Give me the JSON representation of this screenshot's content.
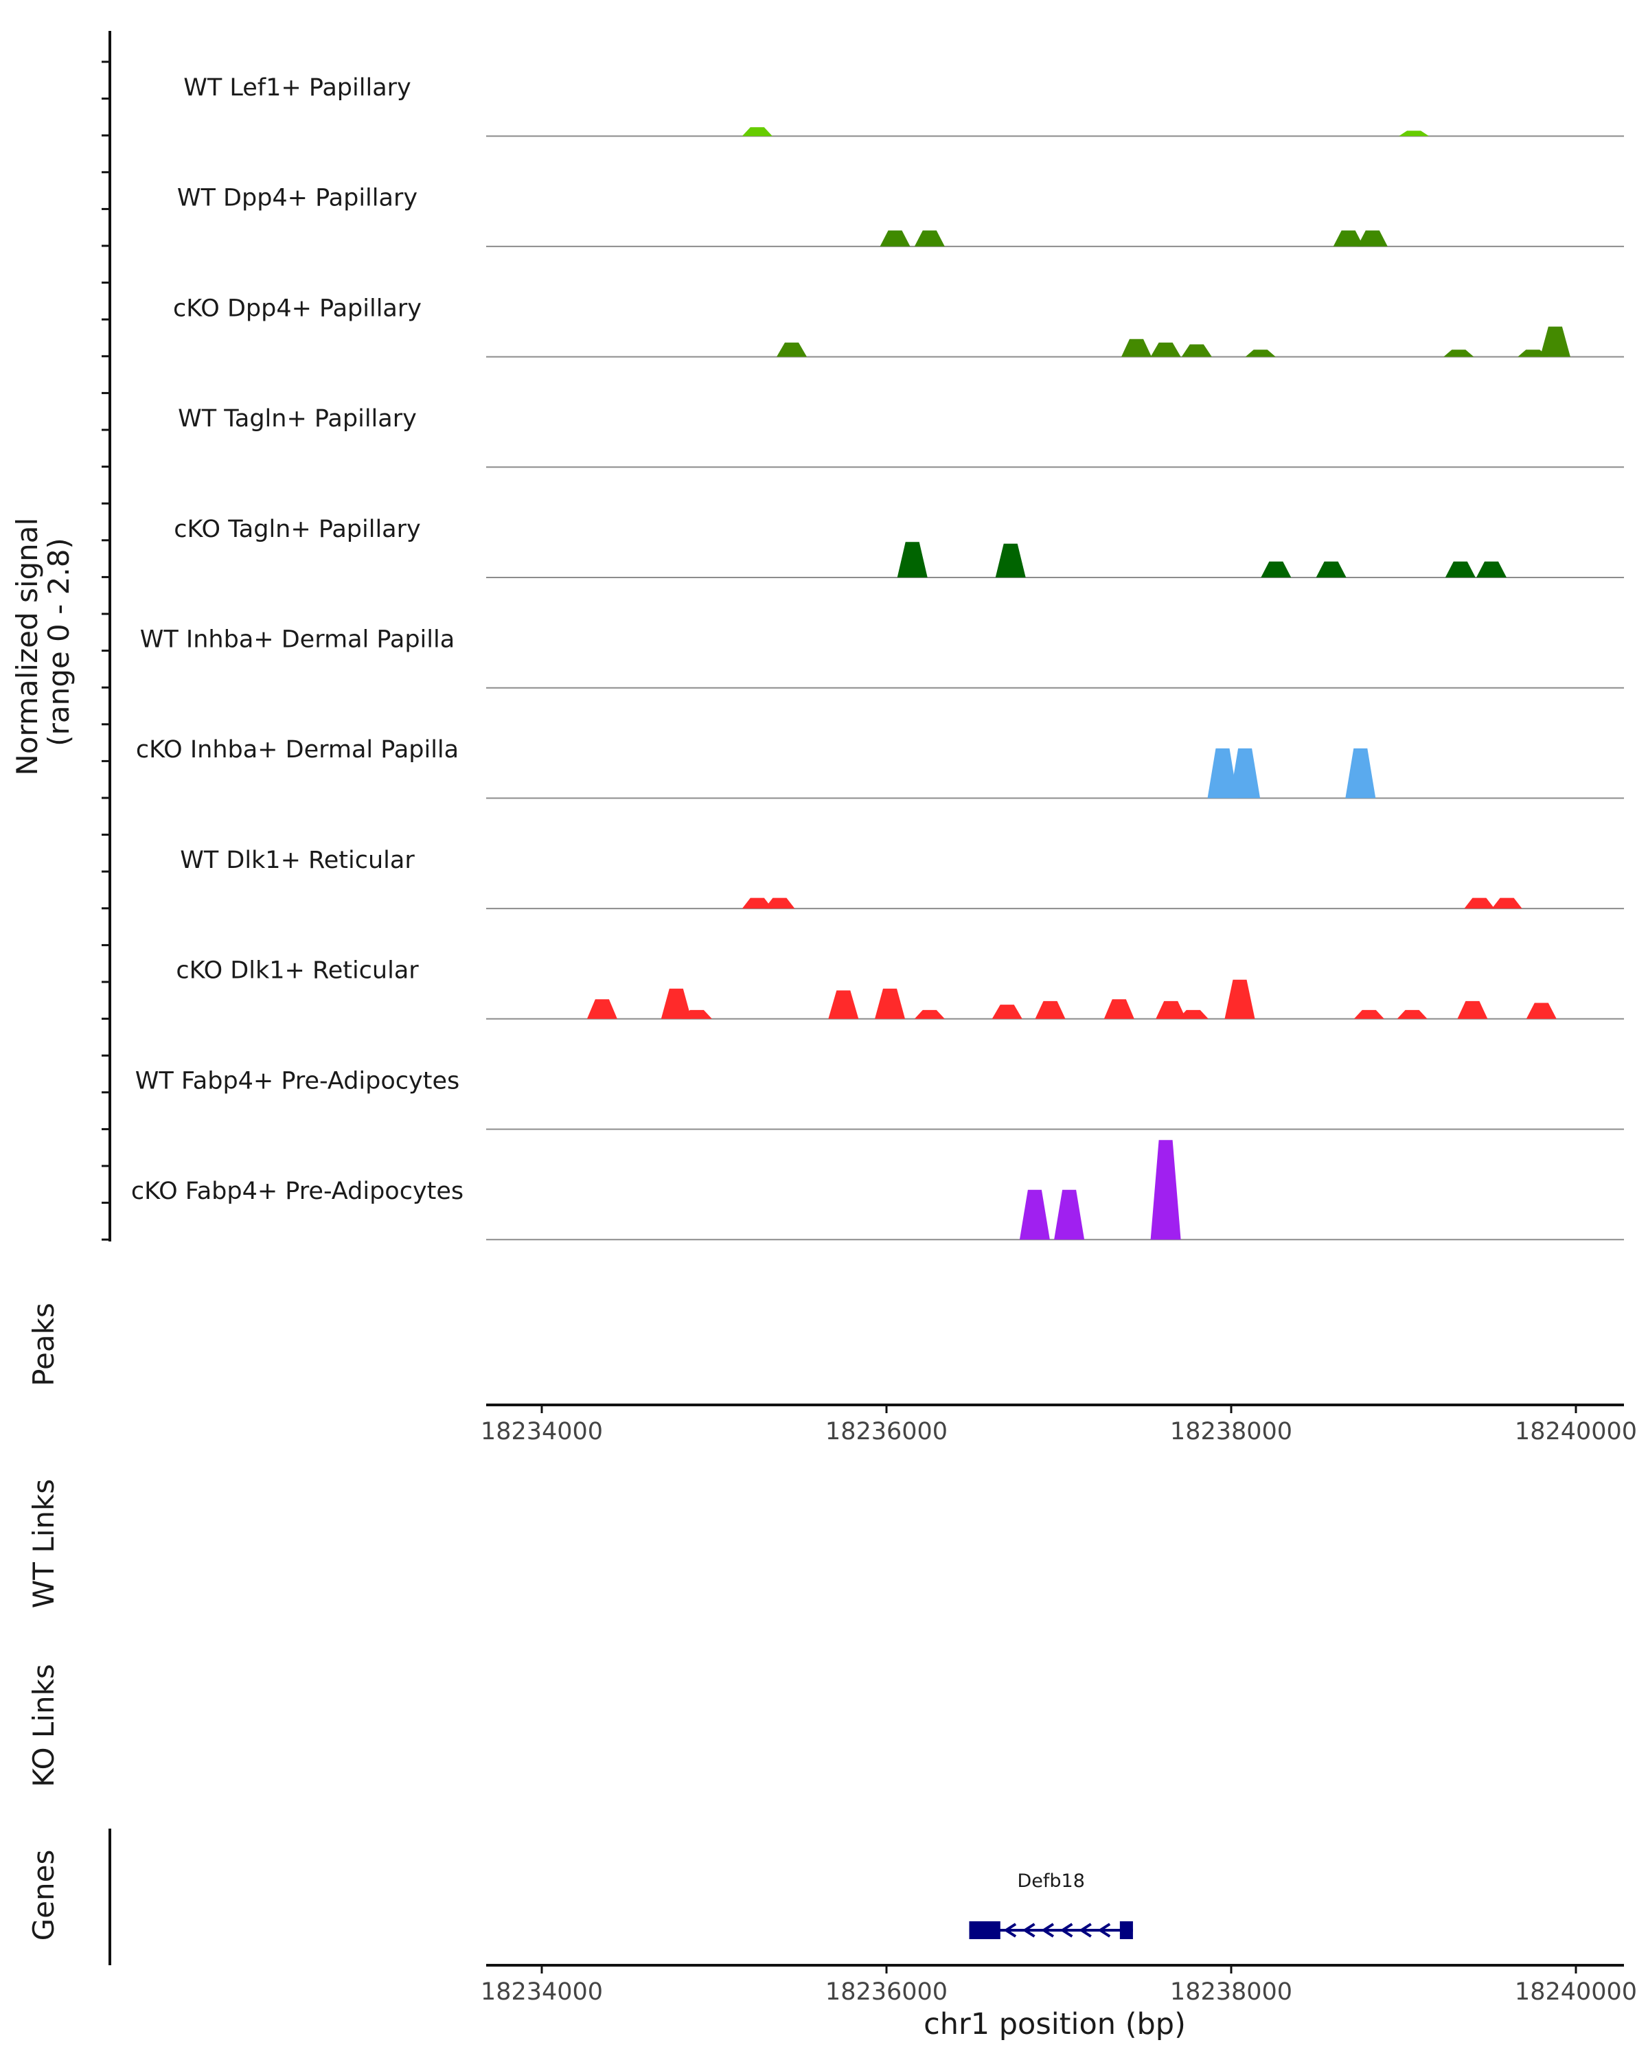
{
  "chart_data": {
    "type": "area",
    "title": "",
    "ylabel": "Normalized signal\n(range 0 - 2.8)",
    "ylim": [
      0,
      2.8
    ],
    "xlabel": "chr1 position (bp)",
    "xlim": [
      18233800,
      18240200
    ],
    "xticks": [
      18234000,
      18236000,
      18238000,
      18240000
    ],
    "xtick_labels": [
      "18234000",
      "18236000",
      "18238000",
      "18240000"
    ],
    "tracks": [
      {
        "name": "WT Lef1+ Papillary",
        "color": "#66CC00",
        "peaks": [
          [
            18235250,
            0.25
          ],
          [
            18239060,
            0.15
          ]
        ]
      },
      {
        "name": "WT Dpp4+ Papillary",
        "color": "#3F8A00",
        "peaks": [
          [
            18236050,
            0.45
          ],
          [
            18236250,
            0.45
          ],
          [
            18238680,
            0.45
          ],
          [
            18238820,
            0.45
          ]
        ]
      },
      {
        "name": "cKO Dpp4+ Papillary",
        "color": "#448A00",
        "peaks": [
          [
            18235450,
            0.4
          ],
          [
            18237450,
            0.5
          ],
          [
            18237620,
            0.4
          ],
          [
            18237800,
            0.35
          ],
          [
            18238170,
            0.2
          ],
          [
            18239320,
            0.2
          ],
          [
            18239750,
            0.2
          ],
          [
            18239880,
            0.85
          ]
        ]
      },
      {
        "name": "WT Tagln+ Papillary",
        "color": "#006400",
        "peaks": []
      },
      {
        "name": "cKO Tagln+ Papillary",
        "color": "#006400",
        "peaks": [
          [
            18236150,
            1.0
          ],
          [
            18236720,
            0.95
          ],
          [
            18238260,
            0.45
          ],
          [
            18238580,
            0.45
          ],
          [
            18239330,
            0.45
          ],
          [
            18239510,
            0.45
          ]
        ]
      },
      {
        "name": "WT Inhba+ Dermal Papilla",
        "color": "#5AAAEE",
        "peaks": []
      },
      {
        "name": "cKO Inhba+ Dermal Papilla",
        "color": "#5AAAEE",
        "peaks": [
          [
            18237950,
            1.4
          ],
          [
            18238080,
            1.4
          ],
          [
            18238750,
            1.4
          ]
        ]
      },
      {
        "name": "WT Dlk1+ Reticular",
        "color": "#FF2A2A",
        "peaks": [
          [
            18235250,
            0.3
          ],
          [
            18235380,
            0.3
          ],
          [
            18239440,
            0.3
          ],
          [
            18239600,
            0.3
          ]
        ]
      },
      {
        "name": "cKO Dlk1+ Reticular",
        "color": "#FF2A2A",
        "peaks": [
          [
            18234350,
            0.55
          ],
          [
            18234780,
            0.85
          ],
          [
            18234900,
            0.25
          ],
          [
            18235750,
            0.8
          ],
          [
            18236020,
            0.85
          ],
          [
            18236250,
            0.25
          ],
          [
            18236700,
            0.4
          ],
          [
            18236950,
            0.5
          ],
          [
            18237350,
            0.55
          ],
          [
            18237650,
            0.5
          ],
          [
            18237780,
            0.25
          ],
          [
            18238050,
            1.1
          ],
          [
            18238800,
            0.25
          ],
          [
            18239050,
            0.25
          ],
          [
            18239400,
            0.5
          ],
          [
            18239800,
            0.45
          ]
        ]
      },
      {
        "name": "WT Fabp4+ Pre-Adipocytes",
        "color": "#A020F0",
        "peaks": []
      },
      {
        "name": "cKO Fabp4+ Pre-Adipocytes",
        "color": "#A020F0",
        "peaks": [
          [
            18236860,
            1.4
          ],
          [
            18237060,
            1.4
          ],
          [
            18237620,
            2.8
          ]
        ]
      }
    ],
    "side_labels": {
      "peaks": "Peaks",
      "wt_links": "WT Links",
      "ko_links": "KO Links",
      "genes": "Genes"
    },
    "genes": [
      {
        "name": "Defb18",
        "start": 18236480,
        "end": 18237430,
        "strand": "-",
        "color": "#00007F"
      }
    ]
  }
}
